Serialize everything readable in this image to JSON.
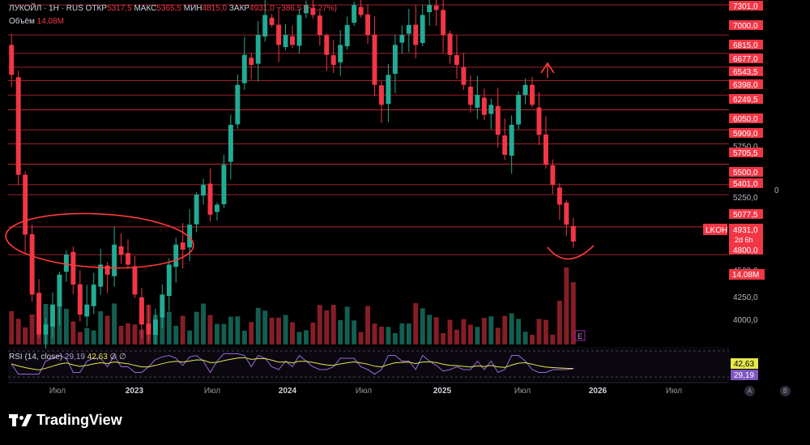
{
  "header": {
    "symbol": "ЛУКОЙЛ",
    "sep1": "·",
    "interval": "1Н",
    "sep2": "·",
    "exchange": "RUS",
    "open_label": "ОТКР",
    "open_value": "5317,5",
    "high_label": "МАКС",
    "high_value": "5365,5",
    "low_label": "МИН",
    "low_value": "4815,0",
    "close_label": "ЗАКР",
    "close_value": "4931,0",
    "change_value": "−386,5 (−7,27%)"
  },
  "volume_legend": {
    "label": "Объём",
    "value": "14,08M"
  },
  "rsi_legend": {
    "label": "RSI (14, close)",
    "value_rsi": "29,19",
    "value_ma": "42,63",
    "extra": "∅ ∅"
  },
  "price_axis": {
    "tick_labels": [
      "7301,0",
      "7000,0",
      "6815,0",
      "6677,0",
      "6543,5",
      "6398,0",
      "6249,5",
      "6050,0",
      "5909,0",
      "5750,0",
      "5705,5",
      "5500,0",
      "5401,0",
      "5250,0",
      "5077,5",
      "4931,0",
      "4800,0",
      "4500,0",
      "4250,0",
      "4000,0"
    ],
    "current_tag": {
      "ticker": "LKOH",
      "price": "4931,0",
      "countdown": "2d 6h"
    },
    "volume_tag": "14,08M",
    "rsi_tags": [
      "42,63",
      "29,19"
    ],
    "right_zero": "0"
  },
  "time_axis": {
    "labels": [
      "Июл",
      "2023",
      "Июл",
      "2024",
      "Июл",
      "2025",
      "Июл",
      "2026",
      "Июл"
    ]
  },
  "earnings_marker": "E",
  "corner_buttons": [
    "A",
    "B"
  ],
  "brand": {
    "name": "TradingView"
  },
  "colors": {
    "up": "#22ab94",
    "down": "#f23645",
    "level": "#f23645",
    "rsi": "#9c6ade",
    "rsi_ma": "#e5e94a",
    "annotation": "#ff3b3b"
  },
  "chart_data": {
    "type": "candlestick",
    "title": "ЛУКОЙЛ · 1Н · RUS",
    "ylim": [
      3900,
      7350
    ],
    "x_ticks": [
      "Июл",
      "2023",
      "Июл",
      "2024",
      "Июл",
      "2025",
      "Июл",
      "2026",
      "Июл"
    ],
    "horizontal_levels": [
      7301.0,
      7000.0,
      6815.0,
      6677.0,
      6543.5,
      6398.0,
      6249.5,
      6050.0,
      5909.0,
      5705.5,
      5500.0,
      5401.0,
      5077.5,
      4800.0
    ],
    "last_price": 4931.0,
    "approx_weekly_closes": [
      6600,
      5600,
      5000,
      4400,
      4000,
      4100,
      4300,
      4600,
      4800,
      4500,
      4200,
      4300,
      4500,
      4700,
      4600,
      4900,
      4800,
      4700,
      4400,
      4100,
      4000,
      4150,
      4400,
      4700,
      4900,
      4850,
      5100,
      5400,
      5500,
      5200,
      5300,
      5700,
      6100,
      6500,
      6800,
      6700,
      7000,
      7200,
      7100,
      6900,
      7000,
      6900,
      7200,
      7300,
      7200,
      7000,
      6800,
      6700,
      6900,
      7100,
      7300,
      7200,
      7000,
      6500,
      6300,
      6600,
      6900,
      7000,
      7100,
      6900,
      7200,
      7300,
      7250,
      7000,
      6800,
      6700,
      6500,
      6300,
      6400,
      6200,
      6300,
      6000,
      5800,
      6100,
      6400,
      6500,
      6300,
      6000,
      5700,
      5500,
      5300,
      5100,
      4931
    ],
    "volume_last": "14,08M",
    "rsi": {
      "value": 29.19,
      "ma": 42.63
    }
  }
}
